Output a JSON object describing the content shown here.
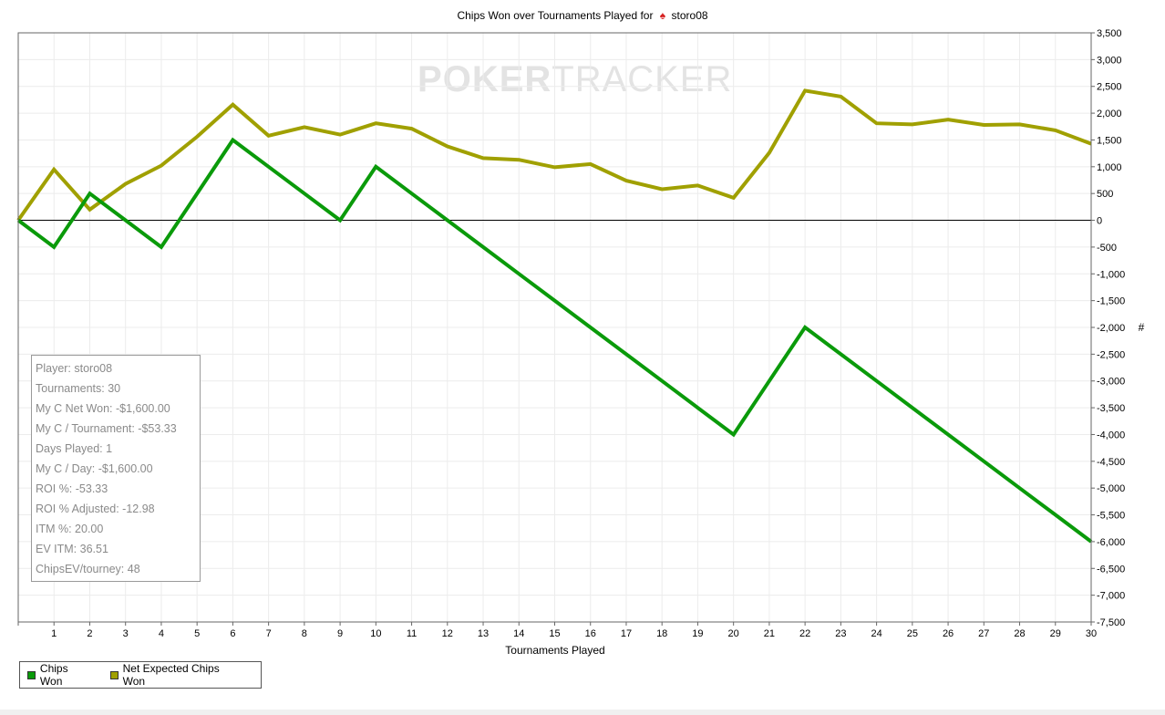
{
  "chart_data": {
    "type": "line",
    "title_prefix": "Chips Won over Tournaments Played for",
    "player": "storo08",
    "xlabel": "Tournaments Played",
    "ylabel": "#",
    "xlim": [
      0,
      30
    ],
    "ylim": [
      -7500,
      3500
    ],
    "ytick_step": 500,
    "grid": true,
    "watermark": {
      "left": "P",
      "chip": "O",
      "right": "KER",
      "tail": "TRACKER"
    },
    "x": [
      0,
      1,
      2,
      3,
      4,
      5,
      6,
      7,
      8,
      9,
      10,
      11,
      12,
      13,
      14,
      15,
      16,
      17,
      18,
      19,
      20,
      21,
      22,
      23,
      24,
      25,
      26,
      27,
      28,
      29,
      30
    ],
    "series": [
      {
        "name": "Chips Won",
        "color": "#0a9a0a",
        "values": [
          0,
          -500,
          500,
          0,
          -500,
          500,
          1500,
          1000,
          500,
          0,
          1000,
          500,
          0,
          -500,
          -1000,
          -1500,
          -2000,
          -2500,
          -3000,
          -3500,
          -4000,
          -3000,
          -2000,
          -2500,
          -3000,
          -3500,
          -4000,
          -4500,
          -5000,
          -5500,
          -6000
        ]
      },
      {
        "name": "Net Expected Chips Won",
        "color": "#a0a000",
        "values": [
          0,
          950,
          200,
          680,
          1020,
          1560,
          2160,
          1580,
          1740,
          1600,
          1810,
          1710,
          1380,
          1160,
          1130,
          990,
          1050,
          740,
          580,
          650,
          420,
          1260,
          2420,
          2310,
          1810,
          1790,
          1880,
          1780,
          1790,
          1680,
          1430
        ]
      }
    ]
  },
  "stats": [
    "Player: storo08",
    "Tournaments: 30",
    "My C Net Won: -$1,600.00",
    "My C / Tournament: -$53.33",
    "Days Played: 1",
    "My C / Day: -$1,600.00",
    "ROI %: -53.33",
    "ROI % Adjusted: -12.98",
    "ITM %: 20.00",
    "EV ITM: 36.51",
    "ChipsEV/tourney: 48"
  ]
}
